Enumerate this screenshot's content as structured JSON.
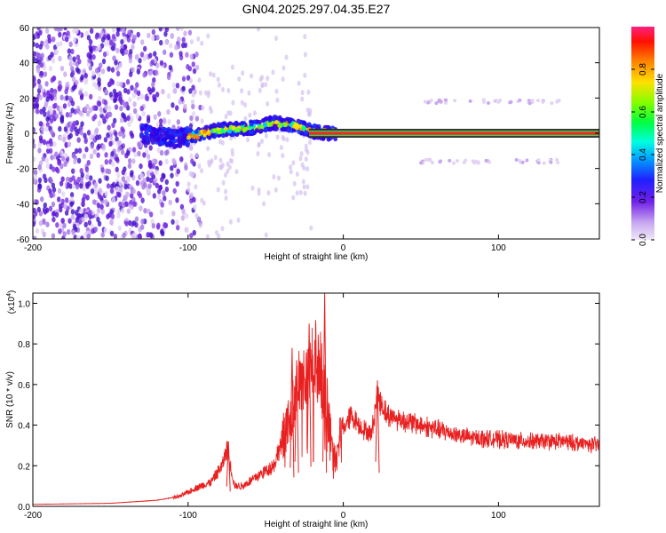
{
  "title": "GN04.2025.297.04.35.E27",
  "colors": {
    "line": "#e82020",
    "background": "#ffffff",
    "axis": "#000000",
    "spectral_band": "#e83020",
    "colormap": [
      "#e8d8f0",
      "#a070e0",
      "#6010e0",
      "#2020ff",
      "#00c0ff",
      "#00ff80",
      "#80ff00",
      "#ffc000",
      "#ff2000",
      "#ff2080"
    ]
  },
  "chart_data": [
    {
      "type": "heatmap",
      "title": "GN04.2025.297.04.35.E27",
      "xlabel": "Height of straight line (km)",
      "ylabel": "Frequency (Hz)",
      "xlim": [
        -200,
        165
      ],
      "ylim": [
        -60,
        60
      ],
      "xticks": [
        -200,
        -100,
        0,
        100
      ],
      "xtick_labels": [
        "-200",
        "-100",
        "0",
        "100"
      ],
      "yticks": [
        -60,
        -40,
        -20,
        0,
        20,
        40,
        60
      ],
      "ytick_labels": [
        "-60",
        "-40",
        "-20",
        "0",
        "20",
        "40",
        "60"
      ],
      "colorbar": {
        "label": "Normalized spectral amplitude",
        "range": [
          0,
          1
        ],
        "ticks": [
          0.0,
          0.2,
          0.4,
          0.6,
          0.8
        ],
        "tick_labels": [
          "0.0",
          "0.2",
          "0.4",
          "0.6",
          "0.8"
        ]
      },
      "features": {
        "broadband_noise_x_range": [
          -200,
          -100
        ],
        "tone_track": [
          {
            "x": -130,
            "f": 0
          },
          {
            "x": -110,
            "f": -3
          },
          {
            "x": -95,
            "f": -1
          },
          {
            "x": -80,
            "f": 2
          },
          {
            "x": -60,
            "f": 3
          },
          {
            "x": -45,
            "f": 6
          },
          {
            "x": -30,
            "f": 4
          },
          {
            "x": -20,
            "f": 1
          },
          {
            "x": -10,
            "f": 0
          },
          {
            "x": 0,
            "f": 0
          },
          {
            "x": 165,
            "f": 0
          }
        ],
        "sideband_frequencies": [
          18,
          -16
        ],
        "sideband_x_range": [
          50,
          140
        ]
      }
    },
    {
      "type": "line",
      "xlabel": "Height of straight line (km)",
      "ylabel": "SNR (10 * v/v)",
      "y_multiplier_label": "(x10",
      "y_multiplier_exponent": "4",
      "y_multiplier_close": ")",
      "xlim": [
        -200,
        165
      ],
      "ylim": [
        0,
        1.05
      ],
      "xticks": [
        -200,
        -100,
        0,
        100
      ],
      "xtick_labels": [
        "-200",
        "-100",
        "0",
        "100"
      ],
      "yticks": [
        0.0,
        0.2,
        0.4,
        0.6,
        0.8,
        1.0
      ],
      "ytick_labels": [
        "0.0",
        "0.2",
        "0.4",
        "0.6",
        "0.8",
        "1.0"
      ],
      "series": [
        {
          "name": "SNR",
          "envelope_x": [
            -200,
            -150,
            -120,
            -105,
            -95,
            -85,
            -78,
            -75,
            -70,
            -65,
            -55,
            -45,
            -38,
            -32,
            -28,
            -22,
            -18,
            -12,
            -8,
            -5,
            -2,
            5,
            10,
            18,
            22,
            28,
            40,
            60,
            80,
            100,
            120,
            140,
            165
          ],
          "envelope_y": [
            0.01,
            0.015,
            0.03,
            0.05,
            0.09,
            0.12,
            0.2,
            0.28,
            0.1,
            0.1,
            0.15,
            0.2,
            0.35,
            0.5,
            0.6,
            0.65,
            0.75,
            0.55,
            0.35,
            0.2,
            0.35,
            0.45,
            0.4,
            0.35,
            0.55,
            0.45,
            0.42,
            0.38,
            0.34,
            0.33,
            0.32,
            0.32,
            0.3
          ],
          "peaks": [
            {
              "x": -33,
              "y": 0.78
            },
            {
              "x": -22,
              "y": 0.9
            },
            {
              "x": -12,
              "y": 1.05
            },
            {
              "x": -30,
              "y": 0.72
            },
            {
              "x": 22,
              "y": 0.62
            },
            {
              "x": -74,
              "y": 0.32
            }
          ]
        }
      ]
    }
  ]
}
